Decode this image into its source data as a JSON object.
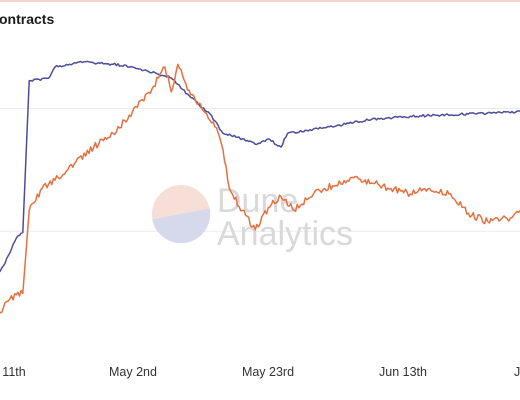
{
  "title": "ontracts",
  "watermark": {
    "line1": "Dune",
    "line2": "Analytics"
  },
  "chart_data": {
    "type": "line",
    "title": "ontracts",
    "x_tick_labels": [
      "11th",
      "May 2nd",
      "May 23rd",
      "Jun 13th",
      "J"
    ],
    "x_domain": [
      "2021-04-10",
      "2021-07-04"
    ],
    "y_axis_labels": "not visible",
    "grid": "horizontal",
    "legend": "none",
    "series": [
      {
        "color": "#4b4f9a",
        "values": [
          {
            "x": "2021-04-10",
            "y": 0.12
          },
          {
            "x": "2021-04-13",
            "y": 0.24
          },
          {
            "x": "2021-04-15",
            "y": 0.34
          },
          {
            "x": "2021-04-16",
            "y": 0.36
          },
          {
            "x": "2021-04-17",
            "y": 0.91
          },
          {
            "x": "2021-04-20",
            "y": 0.92
          },
          {
            "x": "2021-04-21",
            "y": 0.96
          },
          {
            "x": "2021-04-25",
            "y": 0.98
          },
          {
            "x": "2021-04-30",
            "y": 0.97
          },
          {
            "x": "2021-05-03",
            "y": 0.96
          },
          {
            "x": "2021-05-06",
            "y": 0.94
          },
          {
            "x": "2021-05-09",
            "y": 0.92
          },
          {
            "x": "2021-05-12",
            "y": 0.85
          },
          {
            "x": "2021-05-15",
            "y": 0.79
          },
          {
            "x": "2021-05-17",
            "y": 0.72
          },
          {
            "x": "2021-05-20",
            "y": 0.7
          },
          {
            "x": "2021-05-22",
            "y": 0.68
          },
          {
            "x": "2021-05-24",
            "y": 0.7
          },
          {
            "x": "2021-05-26",
            "y": 0.67
          },
          {
            "x": "2021-05-27",
            "y": 0.72
          },
          {
            "x": "2021-05-30",
            "y": 0.73
          },
          {
            "x": "2021-06-04",
            "y": 0.75
          },
          {
            "x": "2021-06-09",
            "y": 0.77
          },
          {
            "x": "2021-06-14",
            "y": 0.78
          },
          {
            "x": "2021-06-19",
            "y": 0.785
          },
          {
            "x": "2021-06-24",
            "y": 0.79
          },
          {
            "x": "2021-06-29",
            "y": 0.795
          },
          {
            "x": "2021-07-04",
            "y": 0.8
          }
        ]
      },
      {
        "color": "#e4703f",
        "values": [
          {
            "x": "2021-04-10",
            "y": 0.02
          },
          {
            "x": "2021-04-12",
            "y": 0.06
          },
          {
            "x": "2021-04-14",
            "y": 0.12
          },
          {
            "x": "2021-04-16",
            "y": 0.14
          },
          {
            "x": "2021-04-17",
            "y": 0.44
          },
          {
            "x": "2021-04-19",
            "y": 0.52
          },
          {
            "x": "2021-04-21",
            "y": 0.55
          },
          {
            "x": "2021-04-24",
            "y": 0.61
          },
          {
            "x": "2021-04-27",
            "y": 0.67
          },
          {
            "x": "2021-04-30",
            "y": 0.72
          },
          {
            "x": "2021-05-03",
            "y": 0.8
          },
          {
            "x": "2021-05-06",
            "y": 0.88
          },
          {
            "x": "2021-05-08",
            "y": 0.96
          },
          {
            "x": "2021-05-09",
            "y": 0.87
          },
          {
            "x": "2021-05-10",
            "y": 0.97
          },
          {
            "x": "2021-05-12",
            "y": 0.86
          },
          {
            "x": "2021-05-14",
            "y": 0.8
          },
          {
            "x": "2021-05-16",
            "y": 0.74
          },
          {
            "x": "2021-05-17",
            "y": 0.66
          },
          {
            "x": "2021-05-18",
            "y": 0.52
          },
          {
            "x": "2021-05-20",
            "y": 0.44
          },
          {
            "x": "2021-05-22",
            "y": 0.37
          },
          {
            "x": "2021-05-24",
            "y": 0.45
          },
          {
            "x": "2021-05-26",
            "y": 0.49
          },
          {
            "x": "2021-05-28",
            "y": 0.44
          },
          {
            "x": "2021-05-31",
            "y": 0.5
          },
          {
            "x": "2021-06-03",
            "y": 0.53
          },
          {
            "x": "2021-06-06",
            "y": 0.56
          },
          {
            "x": "2021-06-09",
            "y": 0.54
          },
          {
            "x": "2021-06-12",
            "y": 0.52
          },
          {
            "x": "2021-06-15",
            "y": 0.5
          },
          {
            "x": "2021-06-18",
            "y": 0.52
          },
          {
            "x": "2021-06-21",
            "y": 0.5
          },
          {
            "x": "2021-06-24",
            "y": 0.43
          },
          {
            "x": "2021-06-27",
            "y": 0.4
          },
          {
            "x": "2021-06-30",
            "y": 0.41
          },
          {
            "x": "2021-07-02",
            "y": 0.44
          },
          {
            "x": "2021-07-04",
            "y": 0.46
          }
        ]
      }
    ]
  }
}
